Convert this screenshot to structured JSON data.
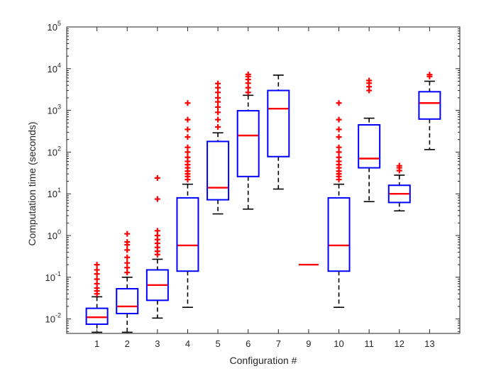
{
  "chart_data": {
    "type": "boxplot",
    "title": "",
    "xlabel": "Configuration #",
    "ylabel": "Computation time (seconds)",
    "yscale": "log",
    "ylim": [
      0.0045,
      100000
    ],
    "yticks": [
      {
        "base": "10",
        "exp": "-2",
        "value": 0.01
      },
      {
        "base": "10",
        "exp": "-1",
        "value": 0.1
      },
      {
        "base": "10",
        "exp": "0",
        "value": 1
      },
      {
        "base": "10",
        "exp": "1",
        "value": 10
      },
      {
        "base": "10",
        "exp": "2",
        "value": 100
      },
      {
        "base": "10",
        "exp": "3",
        "value": 1000
      },
      {
        "base": "10",
        "exp": "4",
        "value": 10000
      },
      {
        "base": "10",
        "exp": "5",
        "value": 100000
      }
    ],
    "categories": [
      "1",
      "2",
      "3",
      "4",
      "5",
      "6",
      "7",
      "9",
      "10",
      "11",
      "12",
      "13"
    ],
    "colors": {
      "box": "#0000ff",
      "median": "#ff0000",
      "whisker": "#000000",
      "outlier": "#ff0000"
    },
    "boxes": [
      {
        "label": "1",
        "whisker_low": 0.0048,
        "q1": 0.0075,
        "median": 0.011,
        "q3": 0.018,
        "whisker_high": 0.034,
        "outliers": [
          0.04,
          0.047,
          0.055,
          0.07,
          0.09,
          0.12,
          0.15,
          0.2
        ]
      },
      {
        "label": "2",
        "whisker_low": 0.0048,
        "q1": 0.0135,
        "median": 0.02,
        "q3": 0.053,
        "whisker_high": 0.1,
        "outliers": [
          0.13,
          0.17,
          0.22,
          0.3,
          0.45,
          0.6,
          0.7,
          1.1
        ]
      },
      {
        "label": "3",
        "whisker_low": 0.0105,
        "q1": 0.028,
        "median": 0.065,
        "q3": 0.15,
        "whisker_high": 0.27,
        "outliers": [
          0.35,
          0.42,
          0.52,
          0.65,
          0.8,
          1.0,
          1.3,
          7.5,
          24
        ]
      },
      {
        "label": "4",
        "whisker_low": 0.019,
        "q1": 0.14,
        "median": 0.58,
        "q3": 8.0,
        "whisker_high": 17,
        "outliers": [
          22,
          26,
          30,
          35,
          42,
          50,
          60,
          75,
          100,
          130,
          230,
          350,
          600,
          1500
        ]
      },
      {
        "label": "5",
        "whisker_low": 3.3,
        "q1": 7.2,
        "median": 14,
        "q3": 180,
        "whisker_high": 290,
        "outliers": [
          400,
          600,
          900,
          1200,
          1600,
          2000,
          2700,
          3500,
          4400
        ]
      },
      {
        "label": "6",
        "whisker_low": 4.3,
        "q1": 26,
        "median": 250,
        "q3": 980,
        "whisker_high": 2300,
        "outliers": [
          2700,
          3500,
          4500,
          5500,
          6500,
          7300
        ]
      },
      {
        "label": "7",
        "whisker_low": 13,
        "q1": 78,
        "median": 1100,
        "q3": 3000,
        "whisker_high": 7000,
        "outliers": []
      },
      {
        "label": "9",
        "whisker_low": 0.2,
        "q1": 0.2,
        "median": 0.2,
        "q3": 0.2,
        "whisker_high": 0.2,
        "outliers": []
      },
      {
        "label": "10",
        "whisker_low": 0.019,
        "q1": 0.14,
        "median": 0.58,
        "q3": 8.0,
        "whisker_high": 17,
        "outliers": [
          22,
          26,
          30,
          35,
          42,
          50,
          60,
          75,
          100,
          130,
          230,
          350,
          600,
          1500
        ]
      },
      {
        "label": "11",
        "whisker_low": 6.5,
        "q1": 42,
        "median": 70,
        "q3": 450,
        "whisker_high": 650,
        "outliers": [
          3000,
          3700,
          4500,
          5200
        ]
      },
      {
        "label": "12",
        "whisker_low": 3.9,
        "q1": 6.2,
        "median": 10,
        "q3": 16,
        "whisker_high": 28,
        "outliers": [
          36,
          42,
          47
        ]
      },
      {
        "label": "13",
        "whisker_low": 115,
        "q1": 620,
        "median": 1500,
        "q3": 2800,
        "whisker_high": 5000,
        "outliers": [
          6500,
          7200
        ]
      }
    ]
  }
}
